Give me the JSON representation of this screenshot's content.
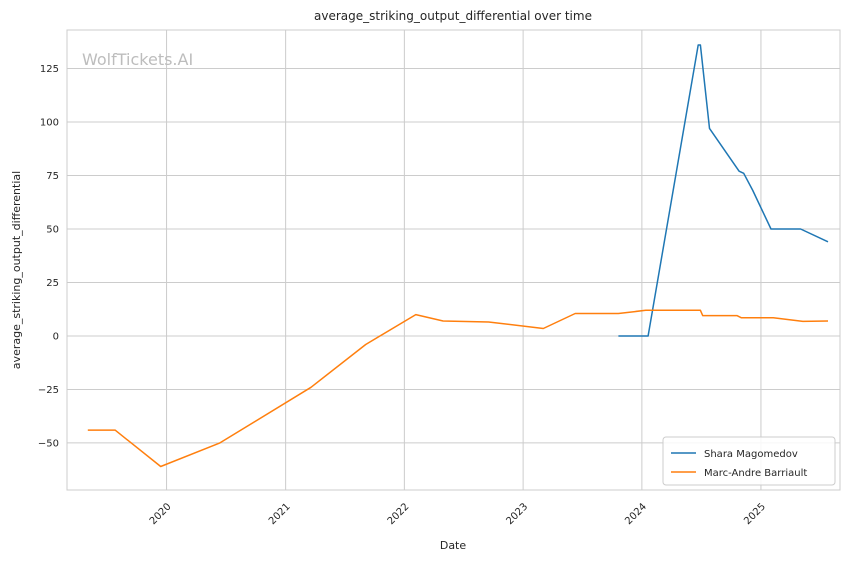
{
  "chart_data": {
    "type": "line",
    "title": "average_striking_output_differential over time",
    "xlabel": "Date",
    "ylabel": "average_striking_output_differential",
    "watermark": "WolfTickets.AI",
    "xlim": [
      "2019-03-01",
      "2025-09-01"
    ],
    "ylim": [
      -72,
      143
    ],
    "x_ticks": [
      "2020-01-01",
      "2021-01-01",
      "2022-01-01",
      "2023-01-01",
      "2024-01-01",
      "2025-01-01"
    ],
    "x_tick_labels": [
      "2020",
      "2021",
      "2022",
      "2023",
      "2024",
      "2025"
    ],
    "y_ticks": [
      -50,
      -25,
      0,
      25,
      50,
      75,
      100,
      125
    ],
    "y_tick_labels": [
      "−50",
      "−25",
      "0",
      "25",
      "50",
      "75",
      "100",
      "125"
    ],
    "grid": true,
    "legend_position": "bottom-right",
    "series": [
      {
        "name": "Shara Magomedov",
        "color": "#1f77b4",
        "points": [
          {
            "x": "2023-10-21",
            "y": 0
          },
          {
            "x": "2024-01-20",
            "y": 0
          },
          {
            "x": "2024-06-22",
            "y": 136
          },
          {
            "x": "2024-06-29",
            "y": 136
          },
          {
            "x": "2024-07-27",
            "y": 97
          },
          {
            "x": "2024-10-26",
            "y": 77
          },
          {
            "x": "2024-11-09",
            "y": 76
          },
          {
            "x": "2024-12-07",
            "y": 68
          },
          {
            "x": "2025-02-01",
            "y": 50
          },
          {
            "x": "2025-05-03",
            "y": 50
          },
          {
            "x": "2025-07-26",
            "y": 44
          }
        ]
      },
      {
        "name": "Marc-Andre Barriault",
        "color": "#ff7f0e",
        "points": [
          {
            "x": "2019-05-04",
            "y": -44
          },
          {
            "x": "2019-07-27",
            "y": -44
          },
          {
            "x": "2019-12-14",
            "y": -61
          },
          {
            "x": "2020-06-13",
            "y": -50
          },
          {
            "x": "2021-03-20",
            "y": -24
          },
          {
            "x": "2021-09-04",
            "y": -4
          },
          {
            "x": "2022-02-05",
            "y": 10
          },
          {
            "x": "2022-04-30",
            "y": 7
          },
          {
            "x": "2022-09-17",
            "y": 6.5
          },
          {
            "x": "2023-03-04",
            "y": 3.5
          },
          {
            "x": "2023-06-10",
            "y": 10.5
          },
          {
            "x": "2023-10-21",
            "y": 10.5
          },
          {
            "x": "2024-01-13",
            "y": 12
          },
          {
            "x": "2024-06-29",
            "y": 12
          },
          {
            "x": "2024-07-06",
            "y": 9.5
          },
          {
            "x": "2024-10-19",
            "y": 9.5
          },
          {
            "x": "2024-11-02",
            "y": 8.5
          },
          {
            "x": "2025-02-08",
            "y": 8.5
          },
          {
            "x": "2025-05-10",
            "y": 6.8
          },
          {
            "x": "2025-07-26",
            "y": 7
          }
        ]
      }
    ]
  }
}
